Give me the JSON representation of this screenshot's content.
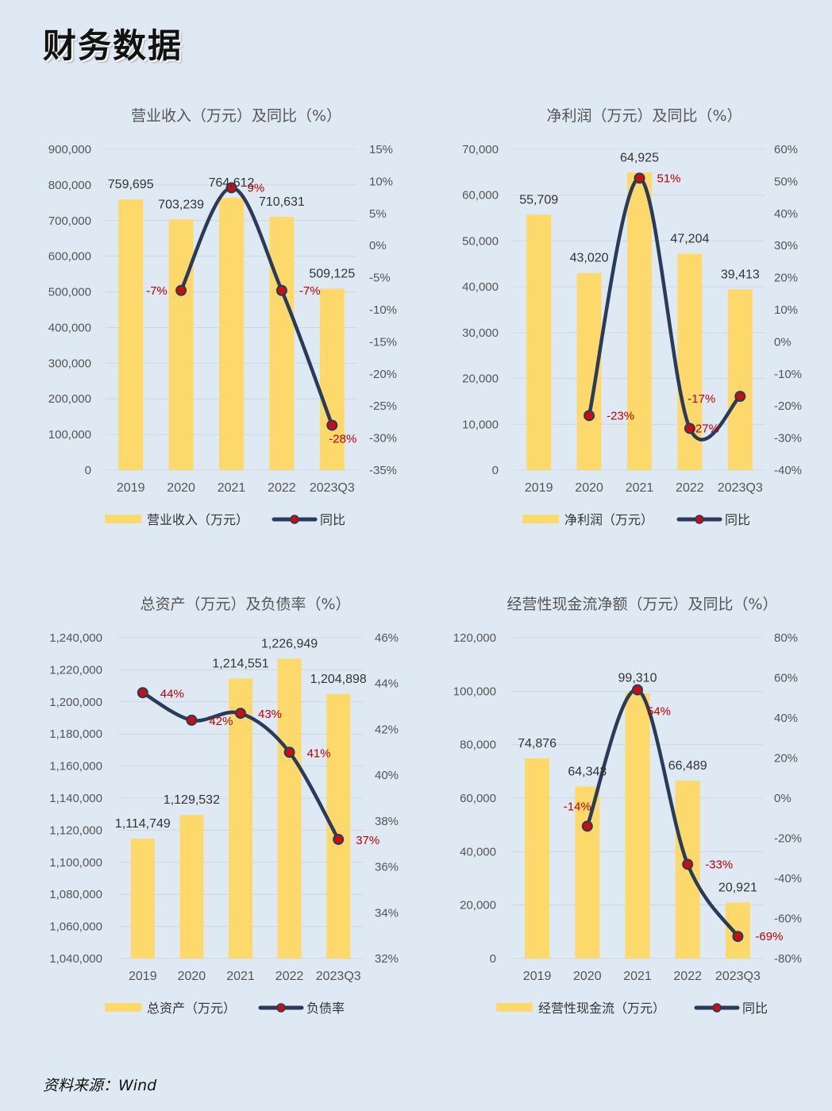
{
  "page": {
    "title": "财务数据",
    "source": "资料来源：Wind"
  },
  "colors": {
    "background": "#dfe9f4",
    "bar": "#fdd96b",
    "line": "#2a3a5a",
    "marker": "#c80f0f",
    "pct_label": "#c00000",
    "axis_text": "#555555",
    "grid": "#d0d6de"
  },
  "chart_data": [
    {
      "id": "revenue",
      "type": "bar+line",
      "title": "营业收入（万元）及同比（%）",
      "categories": [
        "2019",
        "2020",
        "2021",
        "2022",
        "2023Q3"
      ],
      "left_axis": {
        "min": 0,
        "max": 900000,
        "step": 100000,
        "ticks": [
          "0",
          "100,000",
          "200,000",
          "300,000",
          "400,000",
          "500,000",
          "600,000",
          "700,000",
          "800,000",
          "900,000"
        ]
      },
      "right_axis": {
        "min": -35,
        "max": 15,
        "step": 5,
        "ticks": [
          "-35%",
          "-30%",
          "-25%",
          "-20%",
          "-15%",
          "-10%",
          "-5%",
          "0%",
          "5%",
          "10%",
          "15%"
        ]
      },
      "bar_series": {
        "name": "营业收入（万元）",
        "values": [
          759695,
          703239,
          764612,
          710631,
          509125
        ],
        "labels": [
          "759,695",
          "703,239",
          "764,612",
          "710,631",
          "509,125"
        ]
      },
      "line_series": {
        "name": "同比",
        "values": [
          null,
          -7,
          9,
          -7,
          -28
        ],
        "labels": [
          "",
          "-7%",
          "9%",
          "-7%",
          "-28%"
        ]
      },
      "grid": true,
      "legend": "bottom"
    },
    {
      "id": "profit",
      "type": "bar+line",
      "title": "净利润（万元）及同比（%）",
      "categories": [
        "2019",
        "2020",
        "2021",
        "2022",
        "2023Q3"
      ],
      "left_axis": {
        "min": 0,
        "max": 70000,
        "step": 10000,
        "ticks": [
          "0",
          "10,000",
          "20,000",
          "30,000",
          "40,000",
          "50,000",
          "60,000",
          "70,000"
        ]
      },
      "right_axis": {
        "min": -40,
        "max": 60,
        "step": 10,
        "ticks": [
          "-40%",
          "-30%",
          "-20%",
          "-10%",
          "0%",
          "10%",
          "20%",
          "30%",
          "40%",
          "50%",
          "60%"
        ]
      },
      "bar_series": {
        "name": "净利润（万元）",
        "values": [
          55709,
          43020,
          64925,
          47204,
          39413
        ],
        "labels": [
          "55,709",
          "43,020",
          "64,925",
          "47,204",
          "39,413"
        ]
      },
      "line_series": {
        "name": "同比",
        "values": [
          null,
          -23,
          51,
          -27,
          -17
        ],
        "labels": [
          "",
          "-23%",
          "51%",
          "-27%",
          "-17%"
        ]
      },
      "grid": true,
      "legend": "bottom"
    },
    {
      "id": "assets",
      "type": "bar+line",
      "title": "总资产（万元）及负债率（%）",
      "categories": [
        "2019",
        "2020",
        "2021",
        "2022",
        "2023Q3"
      ],
      "left_axis": {
        "min": 1040000,
        "max": 1240000,
        "step": 20000,
        "ticks": [
          "1,040,000",
          "1,060,000",
          "1,080,000",
          "1,100,000",
          "1,120,000",
          "1,140,000",
          "1,160,000",
          "1,180,000",
          "1,200,000",
          "1,220,000",
          "1,240,000"
        ]
      },
      "right_axis": {
        "min": 32,
        "max": 46,
        "step": 2,
        "ticks": [
          "32%",
          "34%",
          "36%",
          "38%",
          "40%",
          "42%",
          "44%",
          "46%"
        ]
      },
      "bar_series": {
        "name": "总资产（万元）",
        "values": [
          1114749,
          1129532,
          1214551,
          1226949,
          1204898
        ],
        "labels": [
          "1,114,749",
          "1,129,532",
          "1,214,551",
          "1,226,949",
          "1,204,898"
        ]
      },
      "line_series": {
        "name": "负债率",
        "values": [
          43.6,
          42.4,
          42.7,
          41,
          37.2
        ],
        "labels": [
          "44%",
          "42%",
          "43%",
          "41%",
          "37%"
        ]
      },
      "grid": true,
      "legend": "bottom"
    },
    {
      "id": "cashflow",
      "type": "bar+line",
      "title": "经营性现金流净额（万元）及同比（%）",
      "categories": [
        "2019",
        "2020",
        "2021",
        "2022",
        "2023Q3"
      ],
      "left_axis": {
        "min": 0,
        "max": 120000,
        "step": 20000,
        "ticks": [
          "0",
          "20,000",
          "40,000",
          "60,000",
          "80,000",
          "100,000",
          "120,000"
        ]
      },
      "right_axis": {
        "min": -80,
        "max": 80,
        "step": 20,
        "ticks": [
          "-80%",
          "-60%",
          "-40%",
          "-20%",
          "0%",
          "20%",
          "40%",
          "60%",
          "80%"
        ]
      },
      "bar_series": {
        "name": "经营性现金流（万元）",
        "values": [
          74876,
          64343,
          99310,
          66489,
          20921
        ],
        "labels": [
          "74,876",
          "64,343",
          "99,310",
          "66,489",
          "20,921"
        ]
      },
      "line_series": {
        "name": "同比",
        "values": [
          null,
          -14,
          54,
          -33,
          -69
        ],
        "labels": [
          "",
          "-14%",
          "54%",
          "-33%",
          "-69%"
        ]
      },
      "grid": true,
      "legend": "bottom"
    }
  ]
}
